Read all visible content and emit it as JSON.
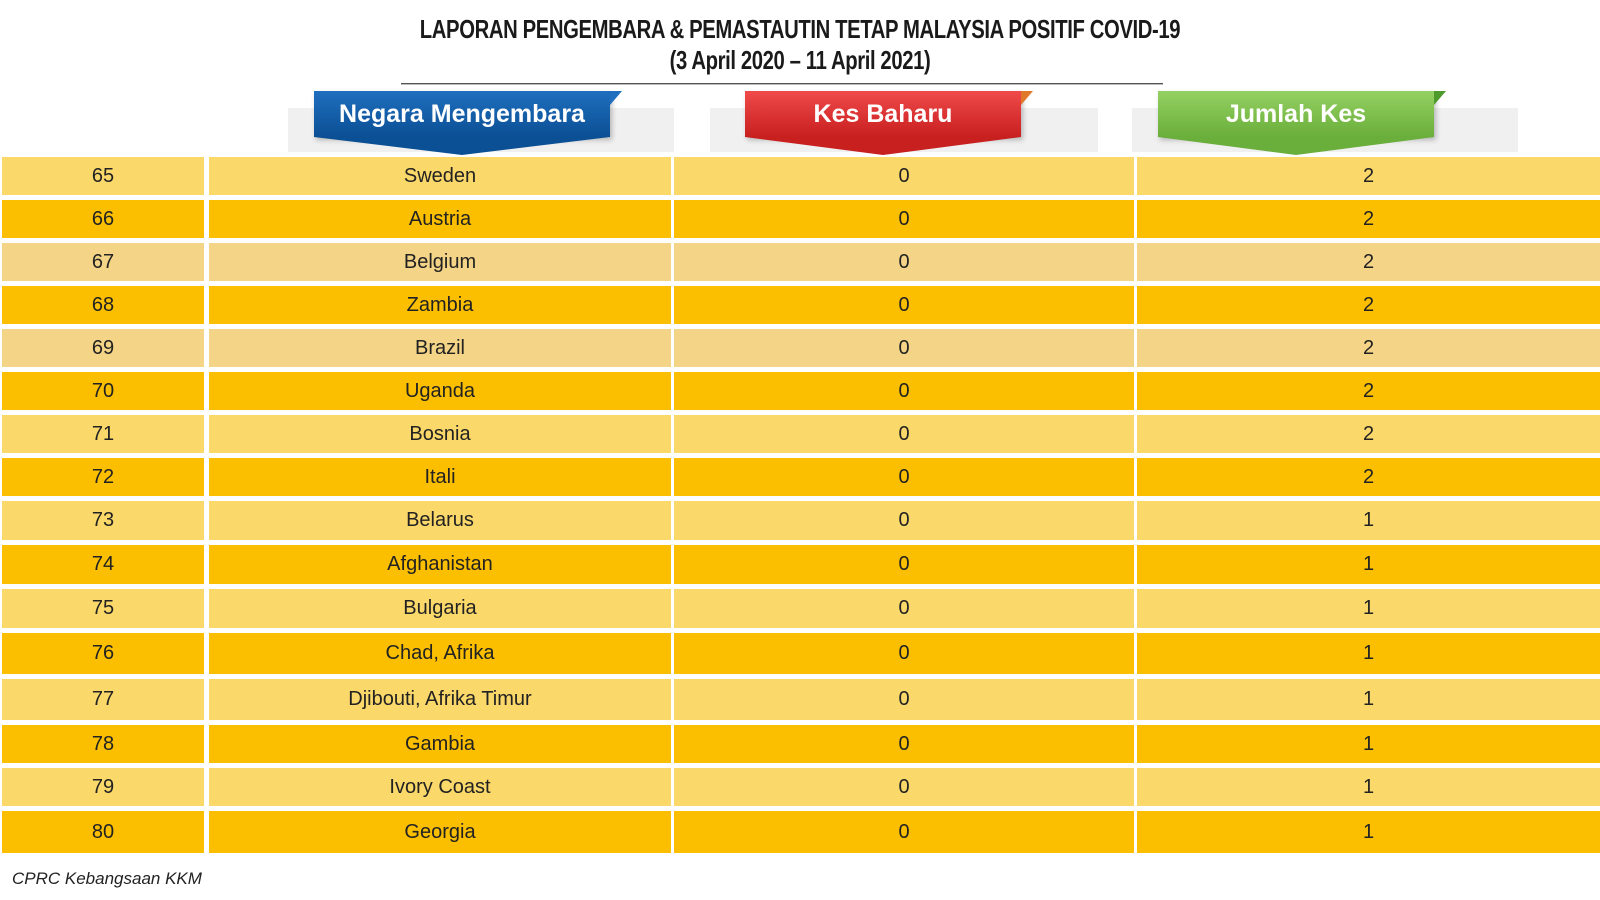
{
  "title": {
    "line1": "LAPORAN PENGEMBARA & PEMASTAUTIN TETAP MALAYSIA POSITIF COVID-19",
    "line2": "(3 April 2020 – 11 April 2021)"
  },
  "headers": {
    "country": "Negara Mengembara",
    "new_cases": "Kes Baharu",
    "total_cases": "Jumlah Kes"
  },
  "colors": {
    "header_country": "#0b4f95",
    "header_new": "#c81f1f",
    "header_total": "#6aae3b",
    "row_light": "#fbd86a",
    "row_dark": "#fbbf00"
  },
  "rows": [
    {
      "no": "65",
      "country": "Sweden",
      "new": "0",
      "total": "2"
    },
    {
      "no": "66",
      "country": "Austria",
      "new": "0",
      "total": "2"
    },
    {
      "no": "67",
      "country": "Belgium",
      "new": "0",
      "total": "2"
    },
    {
      "no": "68",
      "country": "Zambia",
      "new": "0",
      "total": "2"
    },
    {
      "no": "69",
      "country": "Brazil",
      "new": "0",
      "total": "2"
    },
    {
      "no": "70",
      "country": "Uganda",
      "new": "0",
      "total": "2"
    },
    {
      "no": "71",
      "country": "Bosnia",
      "new": "0",
      "total": "2"
    },
    {
      "no": "72",
      "country": "Itali",
      "new": "0",
      "total": "2"
    },
    {
      "no": "73",
      "country": "Belarus",
      "new": "0",
      "total": "1"
    },
    {
      "no": "74",
      "country": "Afghanistan",
      "new": "0",
      "total": "1"
    },
    {
      "no": "75",
      "country": "Bulgaria",
      "new": "0",
      "total": "1"
    },
    {
      "no": "76",
      "country": "Chad, Afrika",
      "new": "0",
      "total": "1"
    },
    {
      "no": "77",
      "country": "Djibouti, Afrika Timur",
      "new": "0",
      "total": "1"
    },
    {
      "no": "78",
      "country": "Gambia",
      "new": "0",
      "total": "1"
    },
    {
      "no": "79",
      "country": "Ivory Coast",
      "new": "0",
      "total": "1"
    },
    {
      "no": "80",
      "country": "Georgia",
      "new": "0",
      "total": "1"
    }
  ],
  "footer": "CPRC Kebangsaan KKM"
}
